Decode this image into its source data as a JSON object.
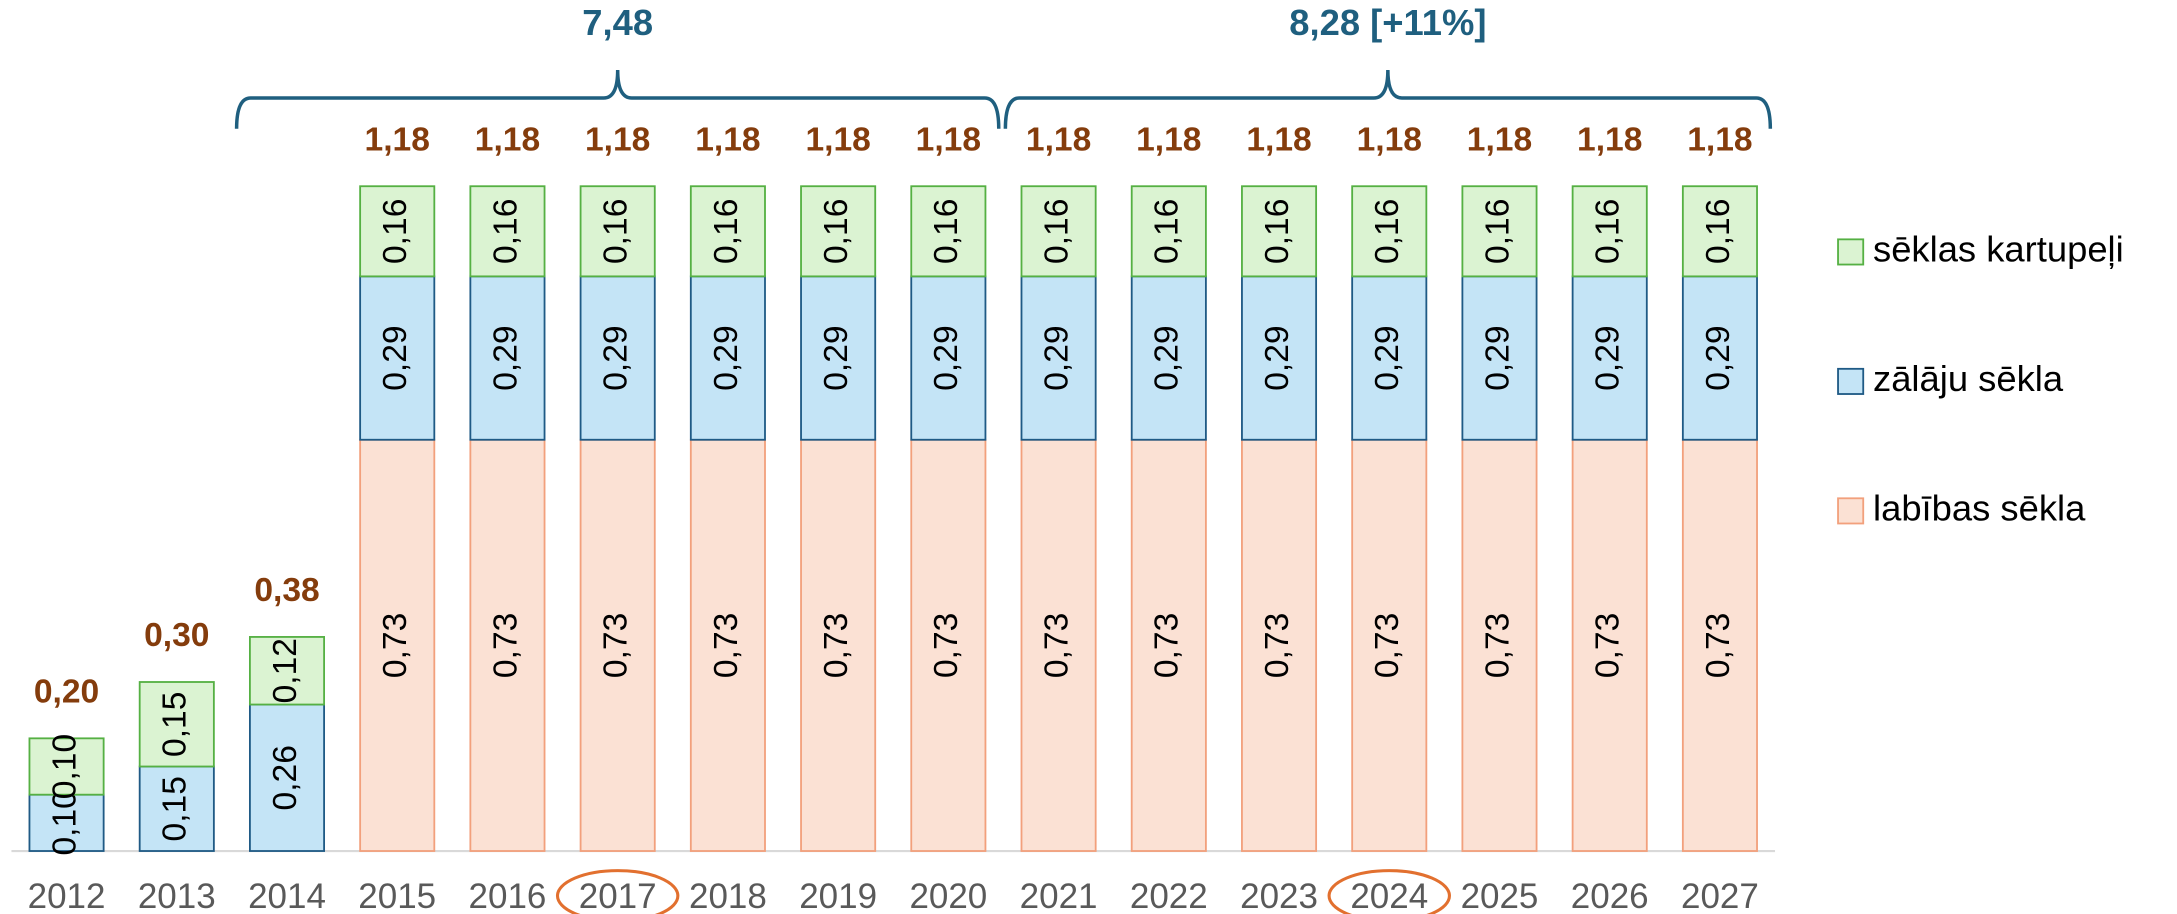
{
  "chart_data": {
    "type": "stacked_bar",
    "categories": [
      "2012",
      "2013",
      "2014",
      "2015",
      "2016",
      "2017",
      "2018",
      "2019",
      "2020",
      "2021",
      "2022",
      "2023",
      "2024",
      "2025",
      "2026",
      "2027"
    ],
    "series": [
      {
        "name": "labības sēkla",
        "color": "#fbe1d4",
        "stroke": "#f2a07c",
        "values": [
          null,
          null,
          null,
          0.73,
          0.73,
          0.73,
          0.73,
          0.73,
          0.73,
          0.73,
          0.73,
          0.73,
          0.73,
          0.73,
          0.73,
          0.73
        ],
        "value_labels": [
          null,
          null,
          null,
          "0,73",
          "0,73",
          "0,73",
          "0,73",
          "0,73",
          "0,73",
          "0,73",
          "0,73",
          "0,73",
          "0,73",
          "0,73",
          "0,73",
          "0,73"
        ]
      },
      {
        "name": "zālāju sēkla",
        "color": "#c4e4f6",
        "stroke": "#1f5a85",
        "values": [
          0.1,
          0.15,
          0.26,
          0.29,
          0.29,
          0.29,
          0.29,
          0.29,
          0.29,
          0.29,
          0.29,
          0.29,
          0.29,
          0.29,
          0.29,
          0.29
        ],
        "value_labels": [
          "0,10",
          "0,15",
          "0,26",
          "0,29",
          "0,29",
          "0,29",
          "0,29",
          "0,29",
          "0,29",
          "0,29",
          "0,29",
          "0,29",
          "0,29",
          "0,29",
          "0,29",
          "0,29"
        ]
      },
      {
        "name": "sēklas kartupeļi",
        "color": "#dbf3d2",
        "stroke": "#55b043",
        "values": [
          0.1,
          0.15,
          0.12,
          0.16,
          0.16,
          0.16,
          0.16,
          0.16,
          0.16,
          0.16,
          0.16,
          0.16,
          0.16,
          0.16,
          0.16,
          0.16
        ],
        "value_labels": [
          "0,10",
          "0,15",
          "0,12",
          "0,16",
          "0,16",
          "0,16",
          "0,16",
          "0,16",
          "0,16",
          "0,16",
          "0,16",
          "0,16",
          "0,16",
          "0,16",
          "0,16",
          "0,16"
        ]
      }
    ],
    "totals": {
      "values": [
        0.2,
        0.3,
        0.38,
        1.18,
        1.18,
        1.18,
        1.18,
        1.18,
        1.18,
        1.18,
        1.18,
        1.18,
        1.18,
        1.18,
        1.18,
        1.18
      ],
      "value_labels": [
        "0,20",
        "0,30",
        "0,38",
        "1,18",
        "1,18",
        "1,18",
        "1,18",
        "1,18",
        "1,18",
        "1,18",
        "1,18",
        "1,18",
        "1,18",
        "1,18",
        "1,18",
        "1,18"
      ],
      "color": "#843c0c"
    },
    "annotations": [
      "7,48",
      "8,28 [+11%]"
    ],
    "highlight": [
      "2017",
      "2024"
    ],
    "ylim": [
      0,
      1.2
    ],
    "legend": "right"
  }
}
